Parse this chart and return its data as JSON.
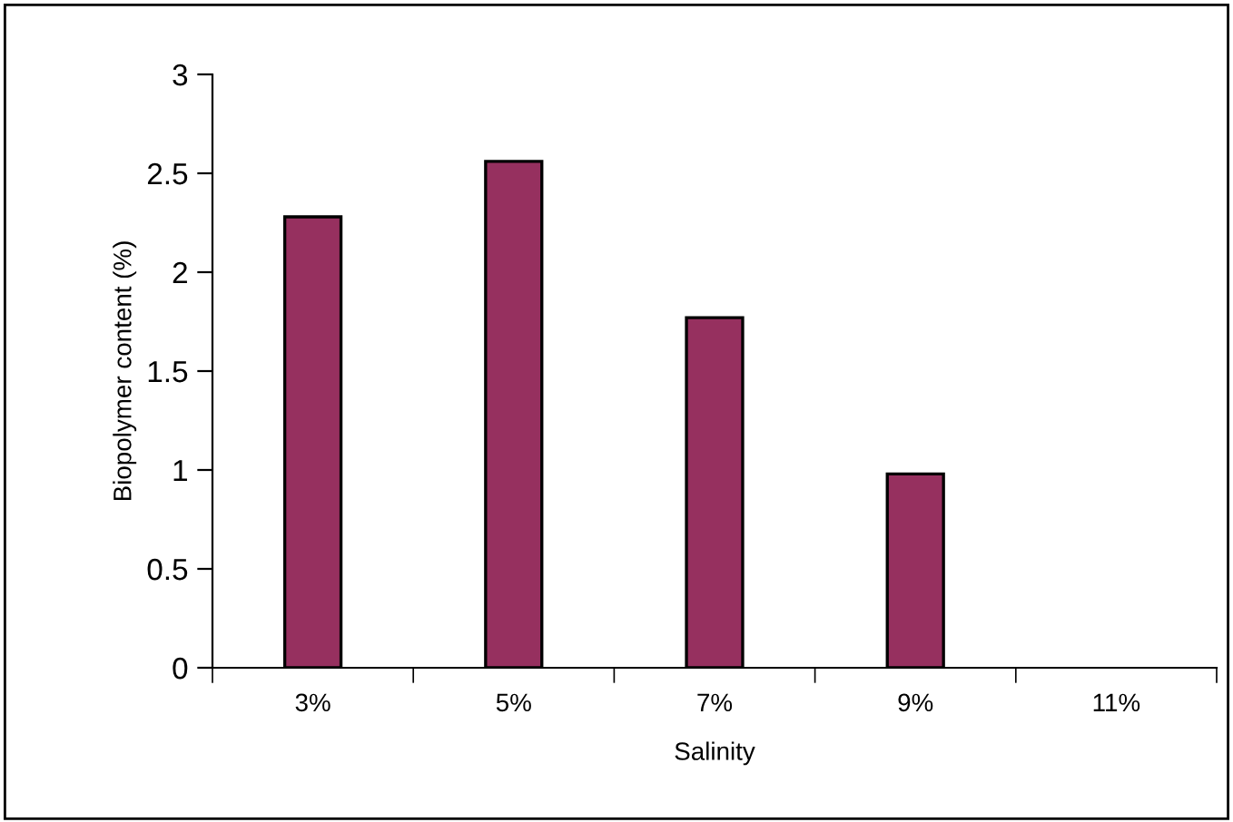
{
  "chart_data": {
    "type": "bar",
    "xlabel": "Salinity",
    "ylabel": "Biopolymer content (%)",
    "categories": [
      "3%",
      "5%",
      "7%",
      "9%",
      "11%"
    ],
    "values": [
      2.28,
      2.56,
      1.77,
      0.98,
      null
    ],
    "color": "#96305f",
    "ylim": [
      0,
      3
    ],
    "yticks": [
      0,
      0.5,
      1,
      1.5,
      2,
      2.5,
      3
    ],
    "grid": false,
    "legend": false
  }
}
